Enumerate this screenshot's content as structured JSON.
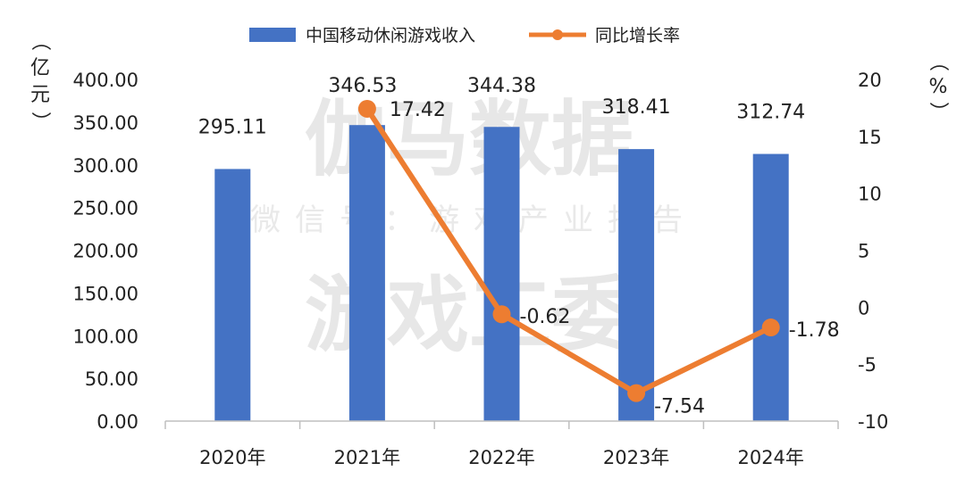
{
  "chart_data": {
    "type": "bar+line",
    "categories": [
      "2020年",
      "2021年",
      "2022年",
      "2023年",
      "2024年"
    ],
    "series": [
      {
        "name": "中国移动休闲游戏收入",
        "type": "bar",
        "axis": "left",
        "values": [
          295.11,
          346.53,
          344.38,
          318.41,
          312.74
        ],
        "labels": [
          "295.11",
          "346.53",
          "344.38",
          "318.41",
          "312.74"
        ]
      },
      {
        "name": "同比增长率",
        "type": "line",
        "axis": "right",
        "values": [
          null,
          17.42,
          -0.62,
          -7.54,
          -1.78
        ],
        "labels": [
          "",
          "17.42",
          "-0.62",
          "-7.54",
          "-1.78"
        ]
      }
    ],
    "left_axis": {
      "unit": "（亿元）",
      "ylim": [
        0,
        400
      ],
      "ticks": [
        "0.00",
        "50.00",
        "100.00",
        "150.00",
        "200.00",
        "250.00",
        "300.00",
        "350.00",
        "400.00"
      ]
    },
    "right_axis": {
      "unit": "（%）",
      "ylim": [
        -10,
        20
      ],
      "ticks": [
        "-10",
        "-5",
        "0",
        "5",
        "10",
        "15",
        "20"
      ]
    },
    "legend_position": "top-center"
  },
  "watermark": {
    "line1": "伽马数据",
    "line2": "微信号：游戏产业报告",
    "line3": "游戏工委"
  },
  "colors": {
    "bar": "#4472C4",
    "line": "#ED7D31",
    "axis": "#bfbfbf"
  }
}
